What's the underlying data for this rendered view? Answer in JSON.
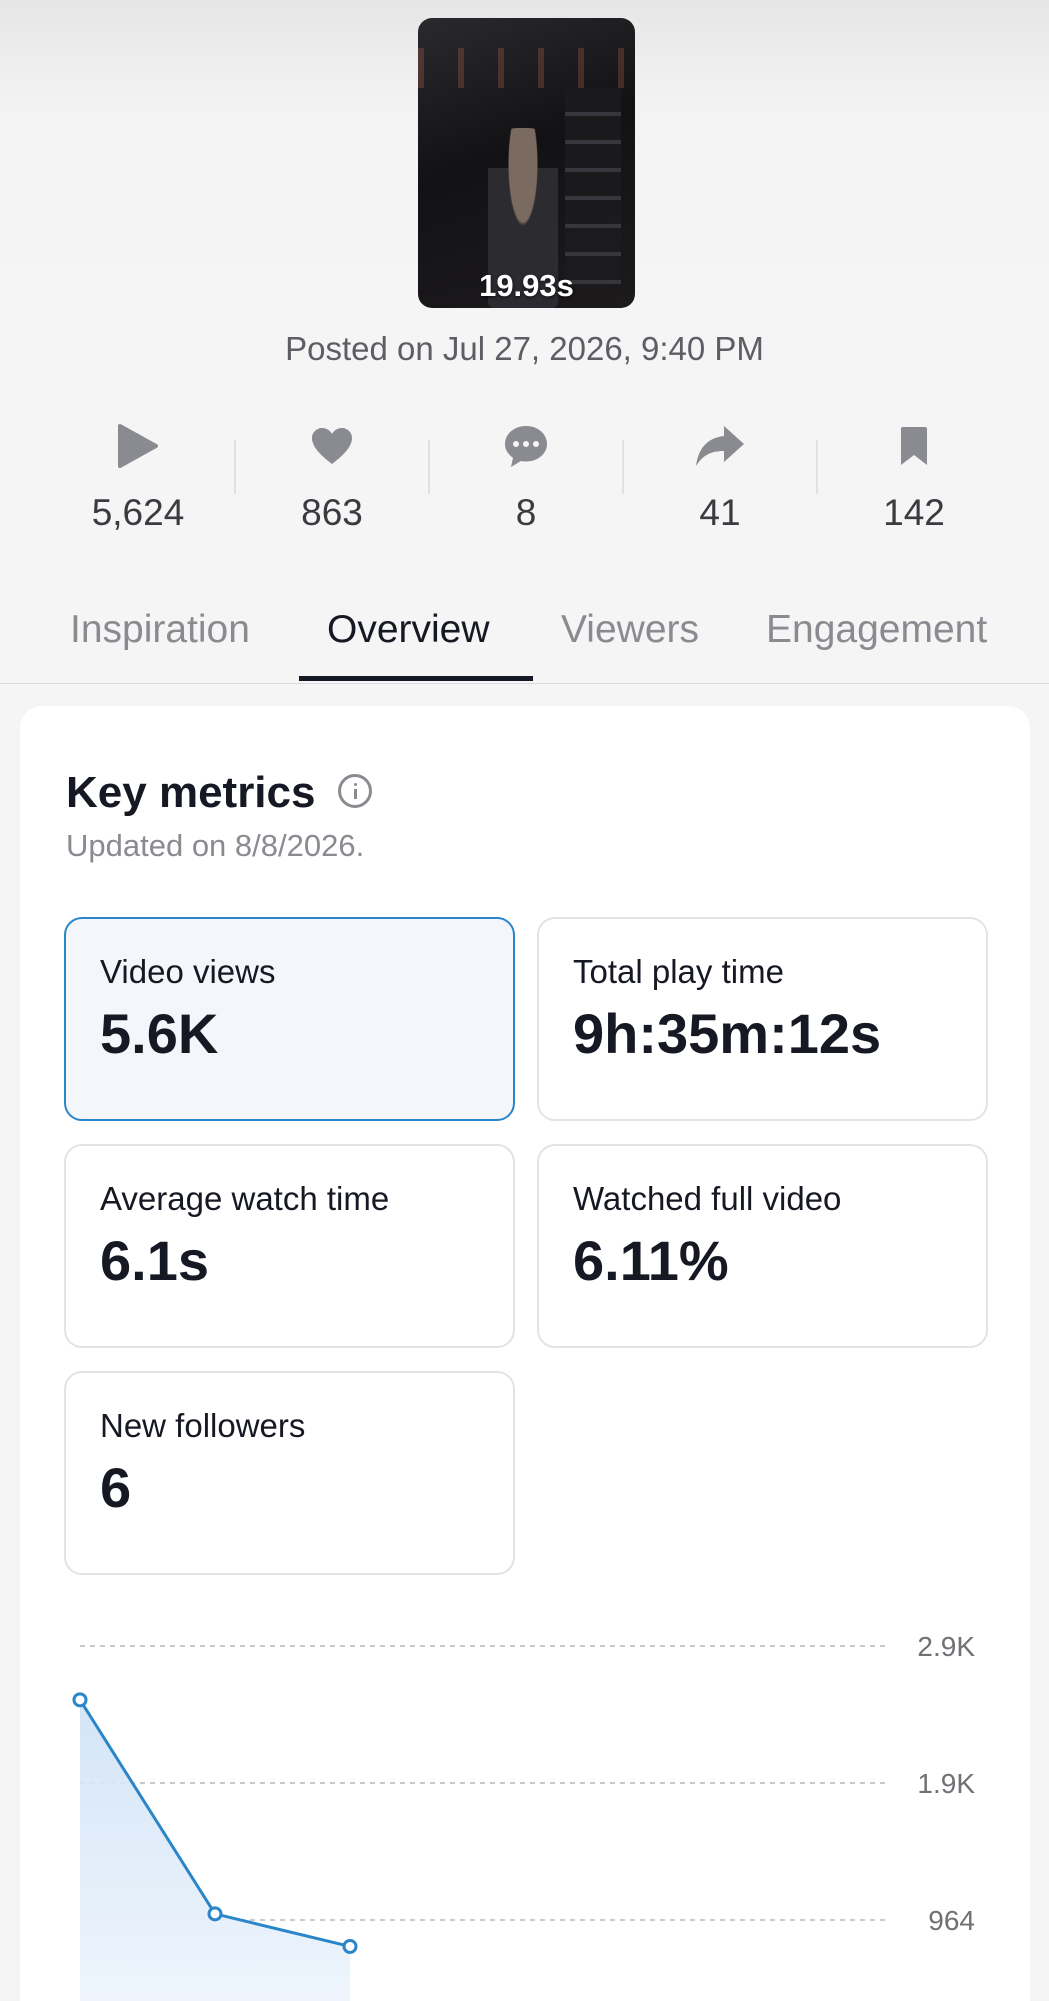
{
  "video": {
    "duration": "19.93s",
    "posted": "Posted on Jul 27, 2026, 9:40 PM"
  },
  "stats": [
    {
      "icon": "play-icon",
      "value": "5,624"
    },
    {
      "icon": "heart-icon",
      "value": "863"
    },
    {
      "icon": "comment-icon",
      "value": "8"
    },
    {
      "icon": "share-icon",
      "value": "41"
    },
    {
      "icon": "bookmark-icon",
      "value": "142"
    }
  ],
  "tabs": [
    {
      "label": "Inspiration",
      "active": false
    },
    {
      "label": "Overview",
      "active": true
    },
    {
      "label": "Viewers",
      "active": false
    },
    {
      "label": "Engagement",
      "active": false
    }
  ],
  "key_metrics": {
    "title": "Key metrics",
    "updated": "Updated on 8/8/2026.",
    "items": [
      {
        "label": "Video views",
        "value": "5.6K",
        "selected": true
      },
      {
        "label": "Total play time",
        "value": "9h:35m:12s",
        "selected": false
      },
      {
        "label": "Average watch time",
        "value": "6.1s",
        "selected": false
      },
      {
        "label": "Watched full video",
        "value": "6.11%",
        "selected": false
      },
      {
        "label": "New followers",
        "value": "6",
        "selected": false
      }
    ]
  },
  "colors": {
    "accent": "#2a86c8",
    "text": "#161823",
    "muted": "#8a8b91"
  },
  "chart_data": {
    "type": "area",
    "y_ticks": [
      "2.9K",
      "1.9K",
      "964"
    ],
    "ylim": [
      0,
      2900
    ],
    "series": [
      {
        "values": [
          2520,
          1010,
          780
        ]
      }
    ],
    "grid": "dashed horizontal"
  }
}
